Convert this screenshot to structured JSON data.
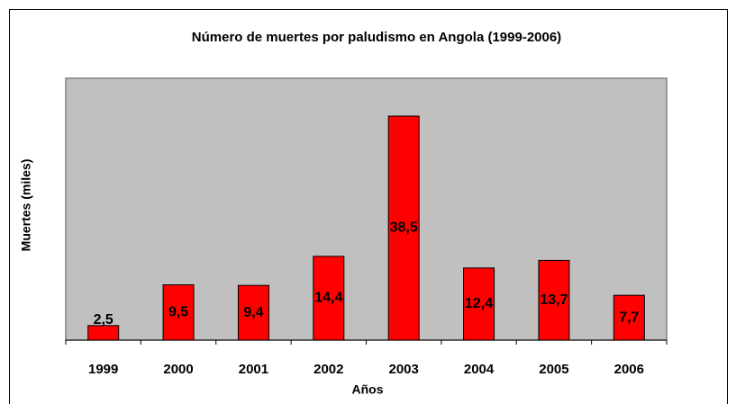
{
  "chart_data": {
    "type": "bar",
    "title": "Número de muertes por paludismo en Angola (1999-2006)",
    "x_label": "Años",
    "y_label": "Muertes (miles)",
    "categories": [
      "1999",
      "2000",
      "2001",
      "2002",
      "2003",
      "2004",
      "2005",
      "2006"
    ],
    "values": [
      2.5,
      9.5,
      9.4,
      14.4,
      38.5,
      12.4,
      13.7,
      7.7
    ],
    "value_labels": [
      "2,5",
      "9,5",
      "9,4",
      "14,4",
      "38,5",
      "12,4",
      "13,7",
      "7,7"
    ],
    "color": "#ff0000",
    "ylim": [
      0,
      45
    ]
  }
}
